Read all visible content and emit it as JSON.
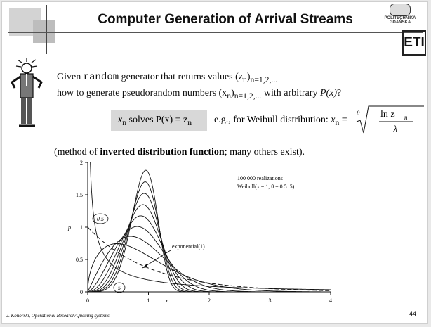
{
  "slide": {
    "title": "Computer Generation of Arrival Streams",
    "university": "POLITECHNIKA GDAŃSKA",
    "logo_text": "ETI",
    "footer": "J. Konorski, Operational Research/Queuing systems",
    "page_number": "44"
  },
  "body": {
    "line1_a": "Given ",
    "line1_code": "random",
    "line1_b": " generator that returns values (z",
    "line1_sub": "n",
    "line1_c": ")",
    "line1_sub2": "n=1,2,...",
    "line2_a": "how to generate pseudorandom numbers (x",
    "line2_sub": "n",
    "line2_b": ")",
    "line2_sub2": "n=1,2,...",
    "line2_c": " with arbitrary ",
    "line2_px": "P(x)",
    "line2_q": "?",
    "formula_x": "x",
    "formula_sub": "n",
    "formula_rest": " solves P(x) = z",
    "formula_sub2": "n",
    "eg_text": " e.g., for Weibull distribution: ",
    "eg_x": "x",
    "eg_sub": "n",
    "eg_eq": " = ",
    "weibull_theta": "θ",
    "weibull_num": "ln z",
    "weibull_num_sub": "n",
    "weibull_den": "λ",
    "weibull_minus": "−",
    "method_a": "(method of ",
    "method_bold": "inverted distribution function",
    "method_b": "; many others exist)."
  },
  "chart_data": {
    "type": "line",
    "title": "",
    "legend_lines": [
      "100 000 realizations",
      "Weibull(x = 1, θ = 0.5..5)"
    ],
    "xlabel": "x",
    "ylabel": "p",
    "xlim": [
      0,
      4
    ],
    "ylim": [
      0,
      2
    ],
    "x_ticks": [
      "0",
      "1",
      "2",
      "3",
      "4"
    ],
    "y_ticks": [
      "0",
      "0.5",
      "1",
      "1.5",
      "2"
    ],
    "annotations": [
      "0.5",
      "5",
      "exponential(1)"
    ],
    "family": "weibull_pdf",
    "scale": 1,
    "theta": [
      0.5,
      1,
      1.5,
      2,
      2.5,
      3,
      3.5,
      4,
      4.5,
      5
    ],
    "dashed_theta": 1,
    "grid": false
  }
}
